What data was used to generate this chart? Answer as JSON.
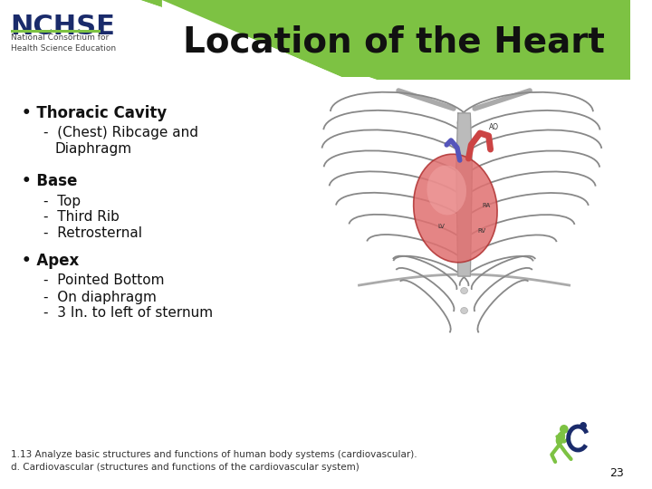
{
  "title": "Location of the Heart",
  "title_fontsize": 28,
  "title_color": "#111111",
  "background_color": "#ffffff",
  "header_bar_color": "#7dc243",
  "bullet1_label": "Thoracic Cavity",
  "bullet1_sub1a": "(Chest) Ribcage and",
  "bullet1_sub1b": "   Diaphragm",
  "bullet2_label": "Base",
  "bullet2_sub": [
    "Top",
    "Third Rib",
    "Retrosternal"
  ],
  "bullet3_label": "Apex",
  "bullet3_sub": [
    "Pointed Bottom",
    "On diaphragm",
    "3 In. to left of sternum"
  ],
  "footer_line1": "1.13 Analyze basic structures and functions of human body systems (cardiovascular).",
  "footer_line2": "d. Cardiovascular (structures and functions of the cardiovascular system)",
  "footer_fontsize": 7.5,
  "page_number": "23",
  "nchse_color": "#1a2b6b",
  "nchse_fontsize": 22,
  "bullet_fontsize": 12,
  "sub_bullet_fontsize": 11,
  "logo_subtitle": "National Consortium for\nHealth Science Education",
  "logo_subtitle_fontsize": 6.5,
  "green_color": "#7dc243",
  "dark_blue": "#1a2b6b"
}
